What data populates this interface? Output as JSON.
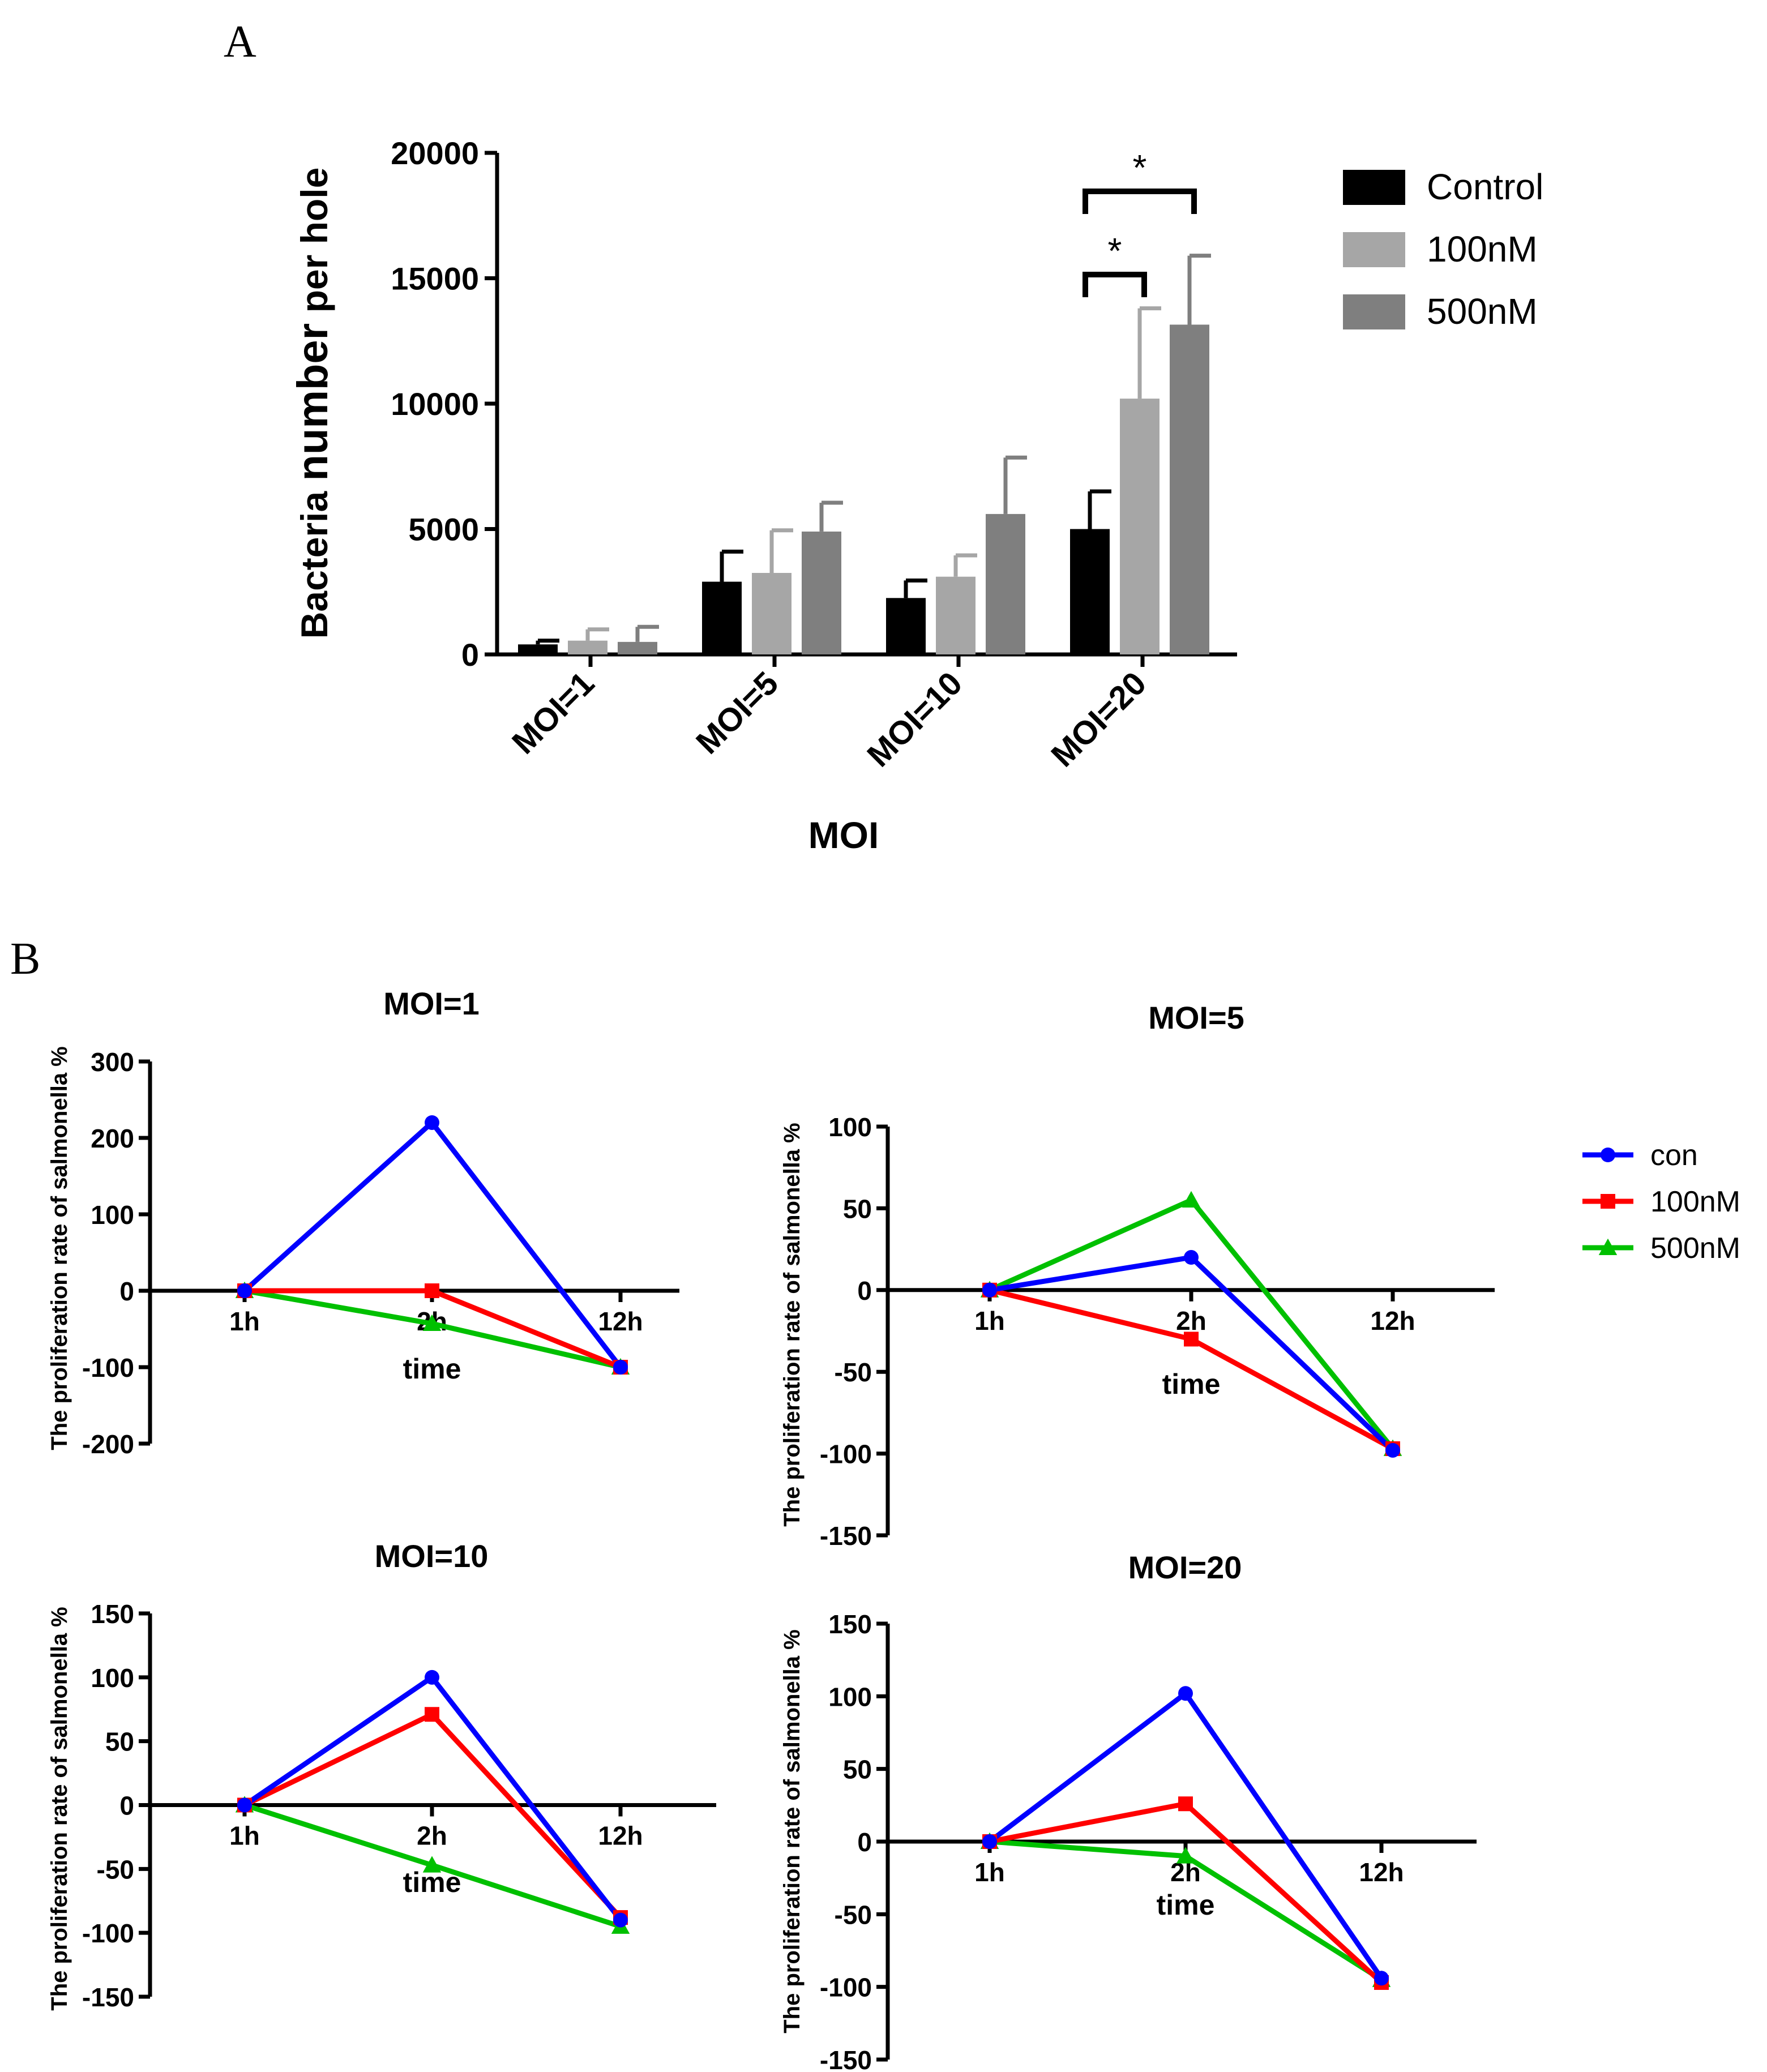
{
  "panels": {
    "a": "A",
    "b": "B"
  },
  "chart_data": [
    {
      "id": "A",
      "type": "bar",
      "xlabel": "MOI",
      "ylabel_part1": "Bacteria ",
      "ylabel_part2": "number",
      "ylabel_part3": " per hole",
      "ylim": [
        0,
        20000
      ],
      "yticks": [
        0,
        5000,
        10000,
        15000,
        20000
      ],
      "categories": [
        "MOI=1",
        "MOI=5",
        "MOI=10",
        "MOI=20"
      ],
      "series": [
        {
          "name": "Control",
          "color": "#000000",
          "values": [
            400,
            2900,
            2250,
            5000
          ],
          "errors": [
            150,
            1200,
            700,
            1500
          ]
        },
        {
          "name": "100nM",
          "color": "#a6a6a6",
          "values": [
            550,
            3250,
            3100,
            10200
          ],
          "errors": [
            450,
            1700,
            850,
            3600
          ]
        },
        {
          "name": "500nM",
          "color": "#7f7f7f",
          "values": [
            500,
            4900,
            5600,
            13150
          ],
          "errors": [
            600,
            1150,
            2250,
            2750
          ]
        }
      ],
      "significance": [
        {
          "label": "*",
          "category": "MOI=20",
          "from": "Control",
          "to": "100nM"
        },
        {
          "label": "*",
          "category": "MOI=20",
          "from": "Control",
          "to": "500nM"
        }
      ]
    },
    {
      "id": "B1",
      "type": "line",
      "title": "MOI=1",
      "xlabel": "time",
      "ylabel": "The proliferation rate of salmonella %",
      "categories": [
        "1h",
        "2h",
        "12h"
      ],
      "ylim": [
        -200,
        300
      ],
      "yticks": [
        -200,
        -100,
        0,
        100,
        200,
        300
      ],
      "series": [
        {
          "name": "con",
          "color": "#0000ff",
          "marker": "circle",
          "values": [
            0,
            220,
            -100
          ]
        },
        {
          "name": "100nM",
          "color": "#ff0000",
          "marker": "square",
          "values": [
            0,
            0,
            -100
          ]
        },
        {
          "name": "500nM",
          "color": "#00c000",
          "marker": "triangle",
          "values": [
            0,
            -43,
            -100
          ]
        }
      ]
    },
    {
      "id": "B2",
      "type": "line",
      "title": "MOI=5",
      "xlabel": "time",
      "ylabel": "The proliferation rate of salmonella %",
      "categories": [
        "1h",
        "2h",
        "12h"
      ],
      "ylim": [
        -150,
        100
      ],
      "yticks": [
        -150,
        -100,
        -50,
        0,
        50,
        100
      ],
      "series": [
        {
          "name": "con",
          "color": "#0000ff",
          "marker": "circle",
          "values": [
            0,
            20,
            -98
          ]
        },
        {
          "name": "100nM",
          "color": "#ff0000",
          "marker": "square",
          "values": [
            0,
            -30,
            -97
          ]
        },
        {
          "name": "500nM",
          "color": "#00c000",
          "marker": "triangle",
          "values": [
            0,
            55,
            -97
          ]
        }
      ]
    },
    {
      "id": "B3",
      "type": "line",
      "title": "MOI=10",
      "xlabel": "time",
      "ylabel": "The proliferation rate of salmonella %",
      "categories": [
        "1h",
        "2h",
        "12h"
      ],
      "ylim": [
        -150,
        150
      ],
      "yticks": [
        -150,
        -100,
        -50,
        0,
        50,
        100,
        150
      ],
      "series": [
        {
          "name": "con",
          "color": "#0000ff",
          "marker": "circle",
          "values": [
            0,
            100,
            -90
          ]
        },
        {
          "name": "100nM",
          "color": "#ff0000",
          "marker": "square",
          "values": [
            0,
            71,
            -88
          ]
        },
        {
          "name": "500nM",
          "color": "#00c000",
          "marker": "triangle",
          "values": [
            0,
            -47,
            -95
          ]
        }
      ]
    },
    {
      "id": "B4",
      "type": "line",
      "title": "MOI=20",
      "xlabel": "time",
      "ylabel": "The proliferation rate of salmonella %",
      "categories": [
        "1h",
        "2h",
        "12h"
      ],
      "ylim": [
        -150,
        150
      ],
      "yticks": [
        -150,
        -100,
        -50,
        0,
        50,
        100,
        150
      ],
      "series": [
        {
          "name": "con",
          "color": "#0000ff",
          "marker": "circle",
          "values": [
            0,
            102,
            -94
          ]
        },
        {
          "name": "100nM",
          "color": "#ff0000",
          "marker": "square",
          "values": [
            0,
            26,
            -97
          ]
        },
        {
          "name": "500nM",
          "color": "#00c000",
          "marker": "triangle",
          "values": [
            0,
            -10,
            -95
          ]
        }
      ]
    }
  ],
  "legend_b": [
    {
      "name": "con",
      "color": "#0000ff",
      "marker": "circle"
    },
    {
      "name": "100nM",
      "color": "#ff0000",
      "marker": "square"
    },
    {
      "name": "500nM",
      "color": "#00c000",
      "marker": "triangle"
    }
  ]
}
